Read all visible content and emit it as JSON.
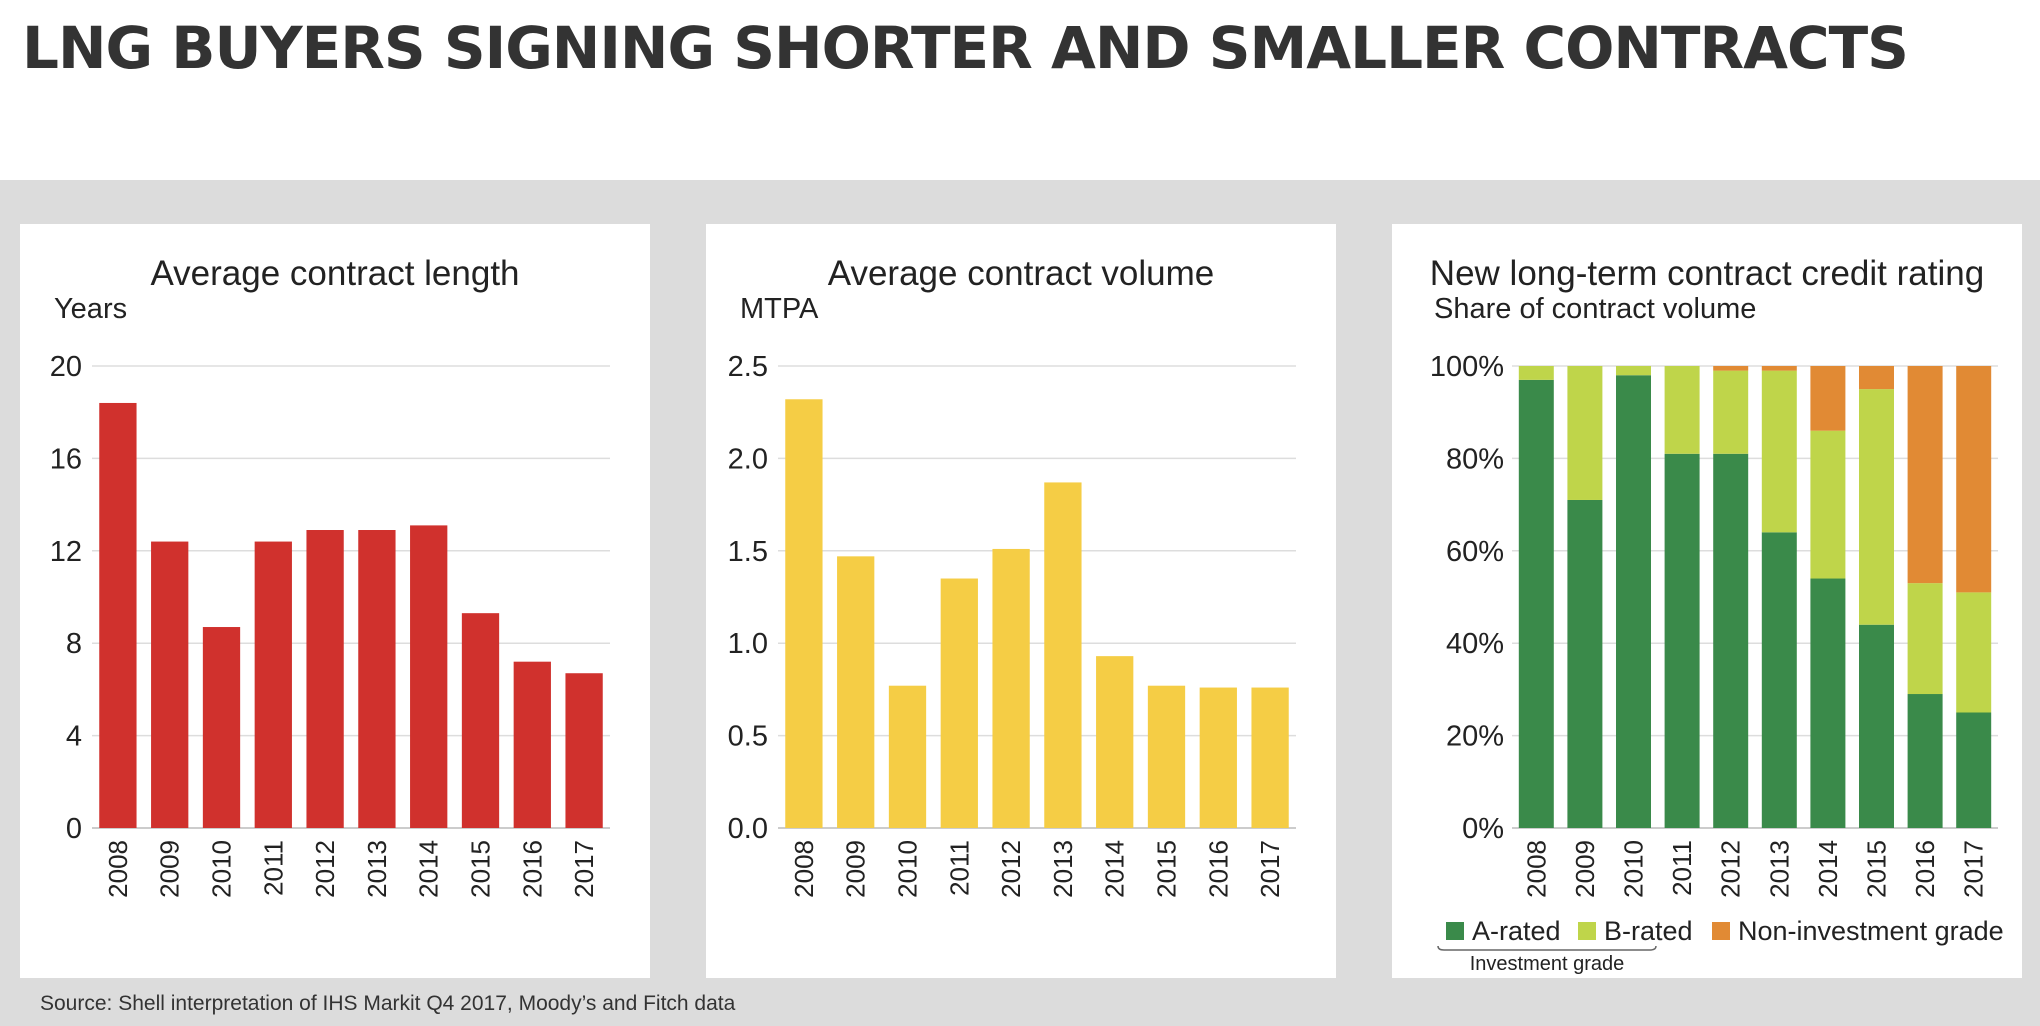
{
  "page_title": "LNG BUYERS SIGNING SHORTER AND SMALLER CONTRACTS",
  "source": "Source: Shell interpretation of IHS Markit Q4 2017, Moody’s and Fitch data",
  "chart_data": [
    {
      "type": "bar",
      "title": "Average contract length",
      "ylabel": "Years",
      "categories": [
        "2008",
        "2009",
        "2010",
        "2011",
        "2012",
        "2013",
        "2014",
        "2015",
        "2016",
        "2017"
      ],
      "values": [
        18.4,
        12.4,
        8.7,
        12.4,
        12.9,
        12.9,
        13.1,
        9.3,
        7.2,
        6.7
      ],
      "ylim": [
        0,
        20
      ],
      "yticks": [
        "0",
        "4",
        "8",
        "12",
        "16",
        "20"
      ],
      "grid": true,
      "color": "#d0312d"
    },
    {
      "type": "bar",
      "title": "Average contract volume",
      "ylabel": "MTPA",
      "categories": [
        "2008",
        "2009",
        "2010",
        "2011",
        "2012",
        "2013",
        "2014",
        "2015",
        "2016",
        "2017"
      ],
      "values": [
        2.32,
        1.47,
        0.77,
        1.35,
        1.51,
        1.87,
        0.93,
        0.77,
        0.76,
        0.76
      ],
      "ylim": [
        0,
        2.5
      ],
      "yticks": [
        "0.0",
        "0.5",
        "1.0",
        "1.5",
        "2.0",
        "2.5"
      ],
      "grid": true,
      "color": "#f5cd45"
    },
    {
      "type": "bar",
      "stacked": true,
      "title": "New long-term contract credit rating",
      "ylabel": "Share of contract volume",
      "categories": [
        "2008",
        "2009",
        "2010",
        "2011",
        "2012",
        "2013",
        "2014",
        "2015",
        "2016",
        "2017"
      ],
      "series": [
        {
          "name": "A-rated",
          "color": "#3a8a4a",
          "values": [
            97,
            71,
            98,
            81,
            81,
            64,
            54,
            44,
            29,
            25
          ]
        },
        {
          "name": "B-rated",
          "color": "#bfd54a",
          "values": [
            3,
            29,
            2,
            19,
            18,
            35,
            32,
            51,
            24,
            26
          ]
        },
        {
          "name": "Non-investment grade",
          "color": "#e18a34",
          "values": [
            0,
            0,
            0,
            0,
            1,
            1,
            14,
            5,
            47,
            49
          ]
        }
      ],
      "ylim": [
        0,
        100
      ],
      "yticks": [
        "0%",
        "20%",
        "40%",
        "60%",
        "80%",
        "100%"
      ],
      "grid": true,
      "legend_position": "bottom",
      "legend_group_label": "Investment grade"
    }
  ]
}
